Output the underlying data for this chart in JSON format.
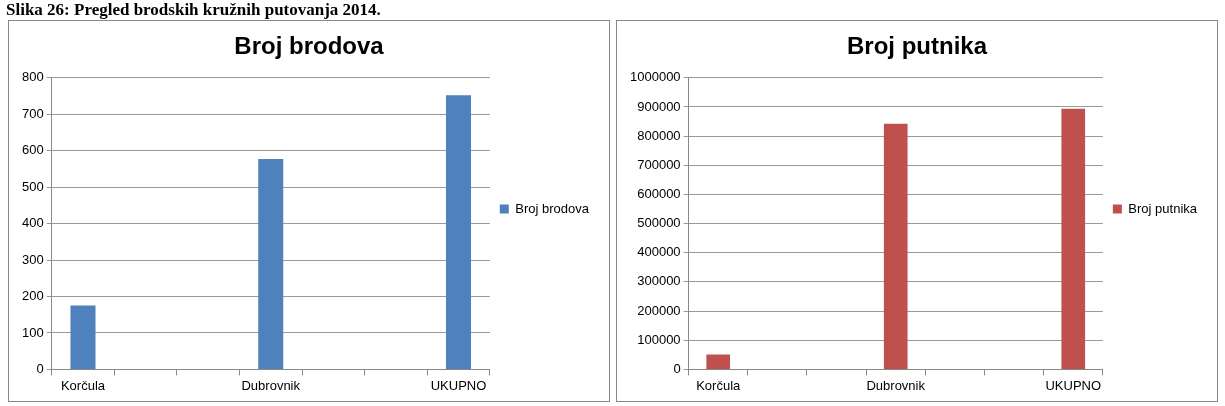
{
  "chart_data": [
    {
      "type": "bar",
      "title": "Broj brodova",
      "annotations": [
        "Slika 26: Pregled brodskih kružnih putovanja 2014."
      ],
      "categories": [
        "Korčula",
        null,
        null,
        "Dubrovnik",
        null,
        null,
        "UKUPNO"
      ],
      "series": [
        {
          "name": "Broj brodova",
          "color": "#4f81bd",
          "values": [
            175,
            null,
            null,
            577,
            null,
            null,
            752
          ]
        }
      ],
      "ylim": [
        0,
        800
      ],
      "yticks": [
        0,
        100,
        200,
        300,
        400,
        500,
        600,
        700,
        800
      ],
      "grid": "y",
      "legend": "right"
    },
    {
      "type": "bar",
      "title": "Broj putnika",
      "categories": [
        "Korčula",
        null,
        null,
        "Dubrovnik",
        null,
        null,
        "UKUPNO"
      ],
      "series": [
        {
          "name": "Broj putnika",
          "color": "#c0504d",
          "values": [
            51000,
            null,
            null,
            842000,
            null,
            null,
            894000
          ]
        }
      ],
      "ylim": [
        0,
        1000000
      ],
      "yticks": [
        0,
        100000,
        200000,
        300000,
        400000,
        500000,
        600000,
        700000,
        800000,
        900000,
        1000000
      ],
      "grid": "y",
      "legend": "right"
    }
  ]
}
